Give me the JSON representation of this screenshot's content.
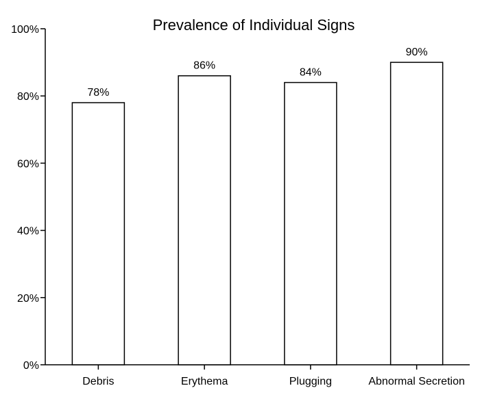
{
  "chart_data": {
    "type": "bar",
    "title": "Prevalence of Individual Signs",
    "xlabel": "",
    "ylabel": "",
    "categories": [
      "Debris",
      "Erythema",
      "Plugging",
      "Abnormal Secretion"
    ],
    "values": [
      78,
      86,
      84,
      90
    ],
    "data_labels": [
      "78%",
      "86%",
      "84%",
      "90%"
    ],
    "ylim": [
      0,
      100
    ],
    "yticks": [
      0,
      20,
      40,
      60,
      80,
      100
    ],
    "ytick_labels": [
      "0%",
      "20%",
      "40%",
      "60%",
      "80%",
      "100%"
    ],
    "grid": false,
    "legend": "none",
    "colors": {
      "bar_fill": "#ffffff",
      "bar_stroke": "#000000",
      "axis": "#000000"
    }
  }
}
